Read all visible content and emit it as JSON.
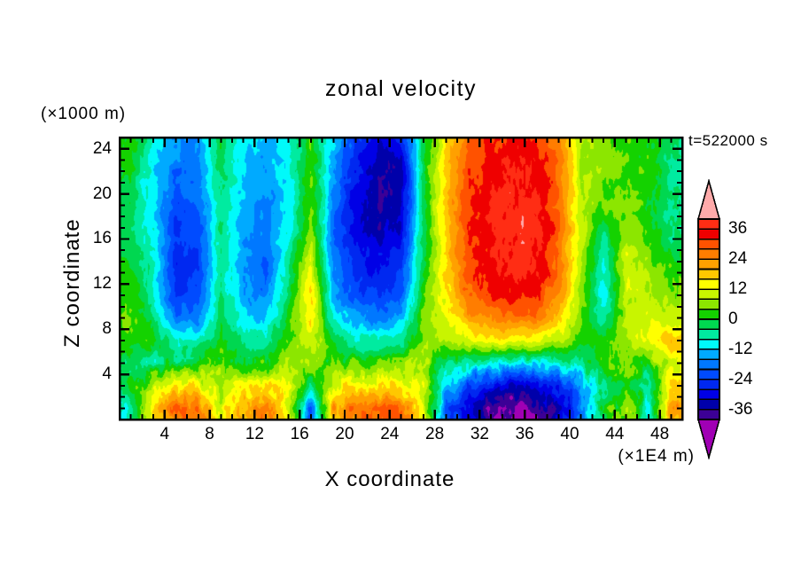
{
  "title": "zonal velocity",
  "timestamp": "t=522000 s",
  "axes": {
    "x": {
      "label": "X coordinate",
      "unit": "(×1E4 m)",
      "range": [
        0,
        50
      ],
      "major_ticks": [
        4,
        8,
        12,
        16,
        20,
        24,
        28,
        32,
        36,
        40,
        44,
        48
      ],
      "minor_step": 1
    },
    "z": {
      "label": "Z coordinate",
      "unit": "(×1000 m)",
      "range": [
        0,
        25
      ],
      "major_ticks": [
        4,
        8,
        12,
        16,
        20,
        24
      ],
      "minor_step": 1
    }
  },
  "colorbar": {
    "labels": [
      36,
      24,
      12,
      0,
      -12,
      -24,
      -36
    ],
    "level_min": -40,
    "level_max": 40,
    "level_step": 4,
    "colors_top_to_bottom": [
      "#ff2d14",
      "#ef0000",
      "#ff5200",
      "#ff7d00",
      "#ffa000",
      "#ffc800",
      "#ffff00",
      "#c8f500",
      "#8ce600",
      "#14d200",
      "#00d750",
      "#00eba0",
      "#00fafa",
      "#00aaff",
      "#0078ff",
      "#004bff",
      "#0028f0",
      "#0000e6",
      "#0000aa",
      "#3c0096"
    ],
    "over_color": "#ffaaaa",
    "under_color": "#a000b4"
  },
  "chart_data": {
    "type": "heatmap",
    "title": "zonal velocity",
    "xlabel": "X coordinate (×1E4 m)",
    "ylabel": "Z coordinate (×1000 m)",
    "xlim": [
      0,
      50
    ],
    "zlim": [
      0,
      25
    ],
    "levels": {
      "min": -40,
      "max": 40,
      "step": 4
    },
    "x": [
      1,
      3,
      5,
      7,
      9,
      11,
      13,
      15,
      17,
      19,
      21,
      23,
      25,
      27,
      29,
      31,
      33,
      35,
      37,
      39,
      41,
      43,
      45,
      47,
      49
    ],
    "z": [
      25,
      23,
      21,
      19,
      17,
      15,
      13,
      11,
      9,
      7,
      5,
      3,
      1
    ],
    "values": [
      [
        2,
        -8,
        -16,
        -16,
        0,
        -10,
        -14,
        -8,
        2,
        -12,
        -24,
        -30,
        -28,
        -2,
        14,
        28,
        32,
        34,
        32,
        26,
        8,
        6,
        2,
        2,
        -4
      ],
      [
        2,
        -10,
        -18,
        -17,
        -2,
        -12,
        -15,
        -9,
        3,
        -14,
        -27,
        -34,
        -33,
        -2,
        16,
        30,
        34,
        36,
        34,
        27,
        8,
        6,
        3,
        2,
        -4
      ],
      [
        -2,
        -11,
        -20,
        -18,
        -3,
        -13,
        -16,
        -10,
        4,
        -16,
        -29,
        -36,
        -34,
        -2,
        17,
        31,
        35,
        37,
        36,
        28,
        9,
        6,
        4,
        2,
        -5
      ],
      [
        -2,
        -11,
        -22,
        -20,
        -4,
        -14,
        -17,
        -11,
        4,
        -18,
        -30,
        -36,
        -33,
        -2,
        18,
        32,
        36,
        38,
        37,
        28,
        9,
        4,
        5,
        2,
        -5
      ],
      [
        -3,
        -10,
        -24,
        -22,
        -4,
        -14,
        -18,
        -10,
        6,
        -19,
        -30,
        -34,
        -32,
        -2,
        18,
        32,
        36,
        38,
        38,
        28,
        9,
        -2,
        6,
        3,
        -4
      ],
      [
        -2,
        -9,
        -26,
        -23,
        -4,
        -15,
        -20,
        -8,
        10,
        -19,
        -28,
        -31,
        -27,
        -2,
        17,
        31,
        35,
        38,
        37,
        27,
        9,
        -7,
        10,
        5,
        -1
      ],
      [
        2,
        -8,
        -26,
        -24,
        -5,
        -16,
        -20,
        -5,
        14,
        -17,
        -26,
        -29,
        -24,
        0,
        16,
        30,
        34,
        37,
        36,
        26,
        8,
        -9,
        12,
        7,
        3
      ],
      [
        2,
        -7,
        -24,
        -22,
        -4,
        -14,
        -18,
        -3,
        16,
        -14,
        -22,
        -25,
        -20,
        2,
        15,
        28,
        32,
        34,
        33,
        24,
        7,
        -12,
        10,
        9,
        6
      ],
      [
        5,
        -3,
        -18,
        -17,
        -2,
        -10,
        -13,
        1,
        16,
        -8,
        -16,
        -17,
        -14,
        4,
        12,
        22,
        25,
        27,
        26,
        18,
        5,
        -6,
        8,
        11,
        10
      ],
      [
        2,
        1,
        -8,
        -7,
        1,
        -5,
        -6,
        4,
        12,
        0,
        -7,
        -7,
        -5,
        6,
        8,
        12,
        14,
        14,
        13,
        9,
        2,
        2,
        7,
        13,
        19
      ],
      [
        -2,
        -5,
        -1,
        0,
        5,
        1,
        2,
        7,
        5,
        5,
        2,
        2,
        4,
        8,
        -3,
        -7,
        -9,
        -10,
        -10,
        -9,
        -5,
        1,
        4,
        1,
        12
      ],
      [
        0,
        9,
        15,
        14,
        8,
        12,
        15,
        14,
        -5,
        13,
        15,
        14,
        15,
        10,
        -12,
        -22,
        -29,
        -31,
        -29,
        -25,
        -17,
        -4,
        2,
        -6,
        16
      ],
      [
        -8,
        14,
        28,
        26,
        12,
        21,
        26,
        14,
        -21,
        22,
        27,
        28,
        29,
        14,
        -20,
        -31,
        -40,
        -43,
        -40,
        -33,
        -20,
        -2,
        9,
        -9,
        22
      ]
    ]
  }
}
